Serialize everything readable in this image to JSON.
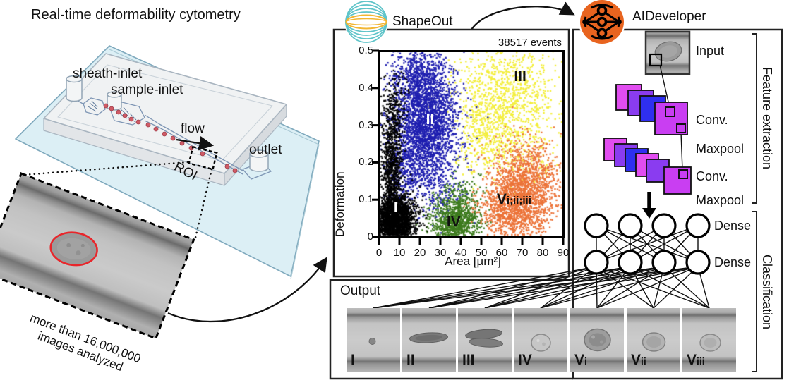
{
  "header": {
    "title": "Real-time deformability cytometry"
  },
  "chip": {
    "sheath_inlet": "sheath-inlet",
    "sample_inlet": "sample-inlet",
    "flow": "flow",
    "roi": "ROI",
    "outlet": "outlet",
    "caption_line1": "more than 16,000,000",
    "caption_line2": "images analyzed"
  },
  "shapeout_panel": {
    "app_name": "ShapeOut"
  },
  "aideveloper_panel": {
    "app_name": "AIDeveloper",
    "input_label": "Input",
    "layer_labels": [
      {
        "text": "Conv."
      },
      {
        "text": "Maxpool"
      },
      {
        "text": "Conv."
      },
      {
        "text": "Maxpool"
      }
    ],
    "dense_labels": [
      "Dense",
      "Dense"
    ],
    "feature_section": "Feature extraction",
    "classification_section": "Classification"
  },
  "output_panel": {
    "label": "Output",
    "classes": [
      {
        "main": "I",
        "sub": "",
        "cell": "dot"
      },
      {
        "main": "II",
        "sub": "",
        "cell": "spindle"
      },
      {
        "main": "III",
        "sub": "",
        "cell": "spindle2"
      },
      {
        "main": "IV",
        "sub": "",
        "cell": "round"
      },
      {
        "main": "V",
        "sub": "i",
        "cell": "blob-l"
      },
      {
        "main": "V",
        "sub": "ii",
        "cell": "blob-m"
      },
      {
        "main": "V",
        "sub": "iii",
        "cell": "blob-s"
      }
    ]
  },
  "chart_data": {
    "type": "scatter",
    "title": "",
    "xlabel": "Area [µm²]",
    "ylabel": "Deformation",
    "xlim": [
      0,
      90
    ],
    "ylim": [
      0,
      0.5
    ],
    "x_ticks": [
      0,
      10,
      20,
      30,
      40,
      50,
      60,
      70,
      80,
      90
    ],
    "y_ticks": [
      0,
      0.1,
      0.2,
      0.3,
      0.4,
      0.5
    ],
    "grid": false,
    "events_annotation": "38517 events",
    "clusters": [
      {
        "label_main": "I",
        "label_sub": "",
        "color": "#000000",
        "label_color": "#ffffff",
        "label_pos": [
          8.2,
          0.078
        ],
        "blobs": [
          {
            "n": 2200,
            "cx": 8,
            "cy": 0.045,
            "sx": 5.0,
            "sy": 0.035
          },
          {
            "n": 900,
            "cx": 6,
            "cy": 0.18,
            "sx": 2.5,
            "sy": 0.1
          },
          {
            "n": 160,
            "cx": 8,
            "cy": 0.33,
            "sx": 3.0,
            "sy": 0.06
          }
        ]
      },
      {
        "label_main": "II",
        "label_sub": "",
        "color": "#1f1fb0",
        "label_color": "#ffffff",
        "label_pos": [
          25,
          0.315
        ],
        "blobs": [
          {
            "n": 2400,
            "cx": 23,
            "cy": 0.3,
            "sx": 7.5,
            "sy": 0.075
          },
          {
            "n": 600,
            "cx": 19,
            "cy": 0.43,
            "sx": 7.0,
            "sy": 0.045
          },
          {
            "n": 350,
            "cx": 13,
            "cy": 0.17,
            "sx": 4.5,
            "sy": 0.06
          },
          {
            "n": 150,
            "cx": 30,
            "cy": 0.12,
            "sx": 6.0,
            "sy": 0.04
          }
        ]
      },
      {
        "label_main": "III",
        "label_sub": "",
        "color": "#f3ee3a",
        "label_color": "#111111",
        "label_pos": [
          69,
          0.43
        ],
        "blobs": [
          {
            "n": 950,
            "cx": 63,
            "cy": 0.38,
            "sx": 12.0,
            "sy": 0.075
          },
          {
            "n": 350,
            "cx": 52,
            "cy": 0.27,
            "sx": 7.0,
            "sy": 0.06
          },
          {
            "n": 120,
            "cx": 70,
            "cy": 0.22,
            "sx": 8.0,
            "sy": 0.04
          }
        ]
      },
      {
        "label_main": "IV",
        "label_sub": "",
        "color": "#3d7b1e",
        "label_color": "#111111",
        "label_pos": [
          36.5,
          0.04
        ],
        "blobs": [
          {
            "n": 850,
            "cx": 37,
            "cy": 0.04,
            "sx": 6.0,
            "sy": 0.028
          },
          {
            "n": 220,
            "cx": 40,
            "cy": 0.1,
            "sx": 5.5,
            "sy": 0.035
          }
        ]
      },
      {
        "label_main": "V",
        "label_sub": "i;ii;iii",
        "color": "#ec7338",
        "label_color": "#111111",
        "label_pos": [
          66,
          0.1
        ],
        "blobs": [
          {
            "n": 1500,
            "cx": 69,
            "cy": 0.1,
            "sx": 8.5,
            "sy": 0.05
          },
          {
            "n": 420,
            "cx": 73,
            "cy": 0.19,
            "sx": 8.0,
            "sy": 0.045
          },
          {
            "n": 150,
            "cx": 60,
            "cy": 0.05,
            "sx": 6.0,
            "sy": 0.03
          }
        ]
      }
    ]
  },
  "colors": {
    "cluster_black": "#000000",
    "cluster_blue": "#1f1fb0",
    "cluster_yellow": "#f3ee3a",
    "cluster_green": "#3d7b1e",
    "cluster_orange": "#ec7338",
    "shapeout_teal": "#5fc4c9",
    "shapeout_yellow": "#f2b632",
    "aidev_orange": "#e8641f",
    "conv_magenta": "#e14df0",
    "conv_violet": "#8a3cf0",
    "conv_blue": "#2f2ff0",
    "conv_front": "#c93ef2",
    "cell_outline_red": "#e8262b",
    "glass_blue": "#dceff5"
  }
}
